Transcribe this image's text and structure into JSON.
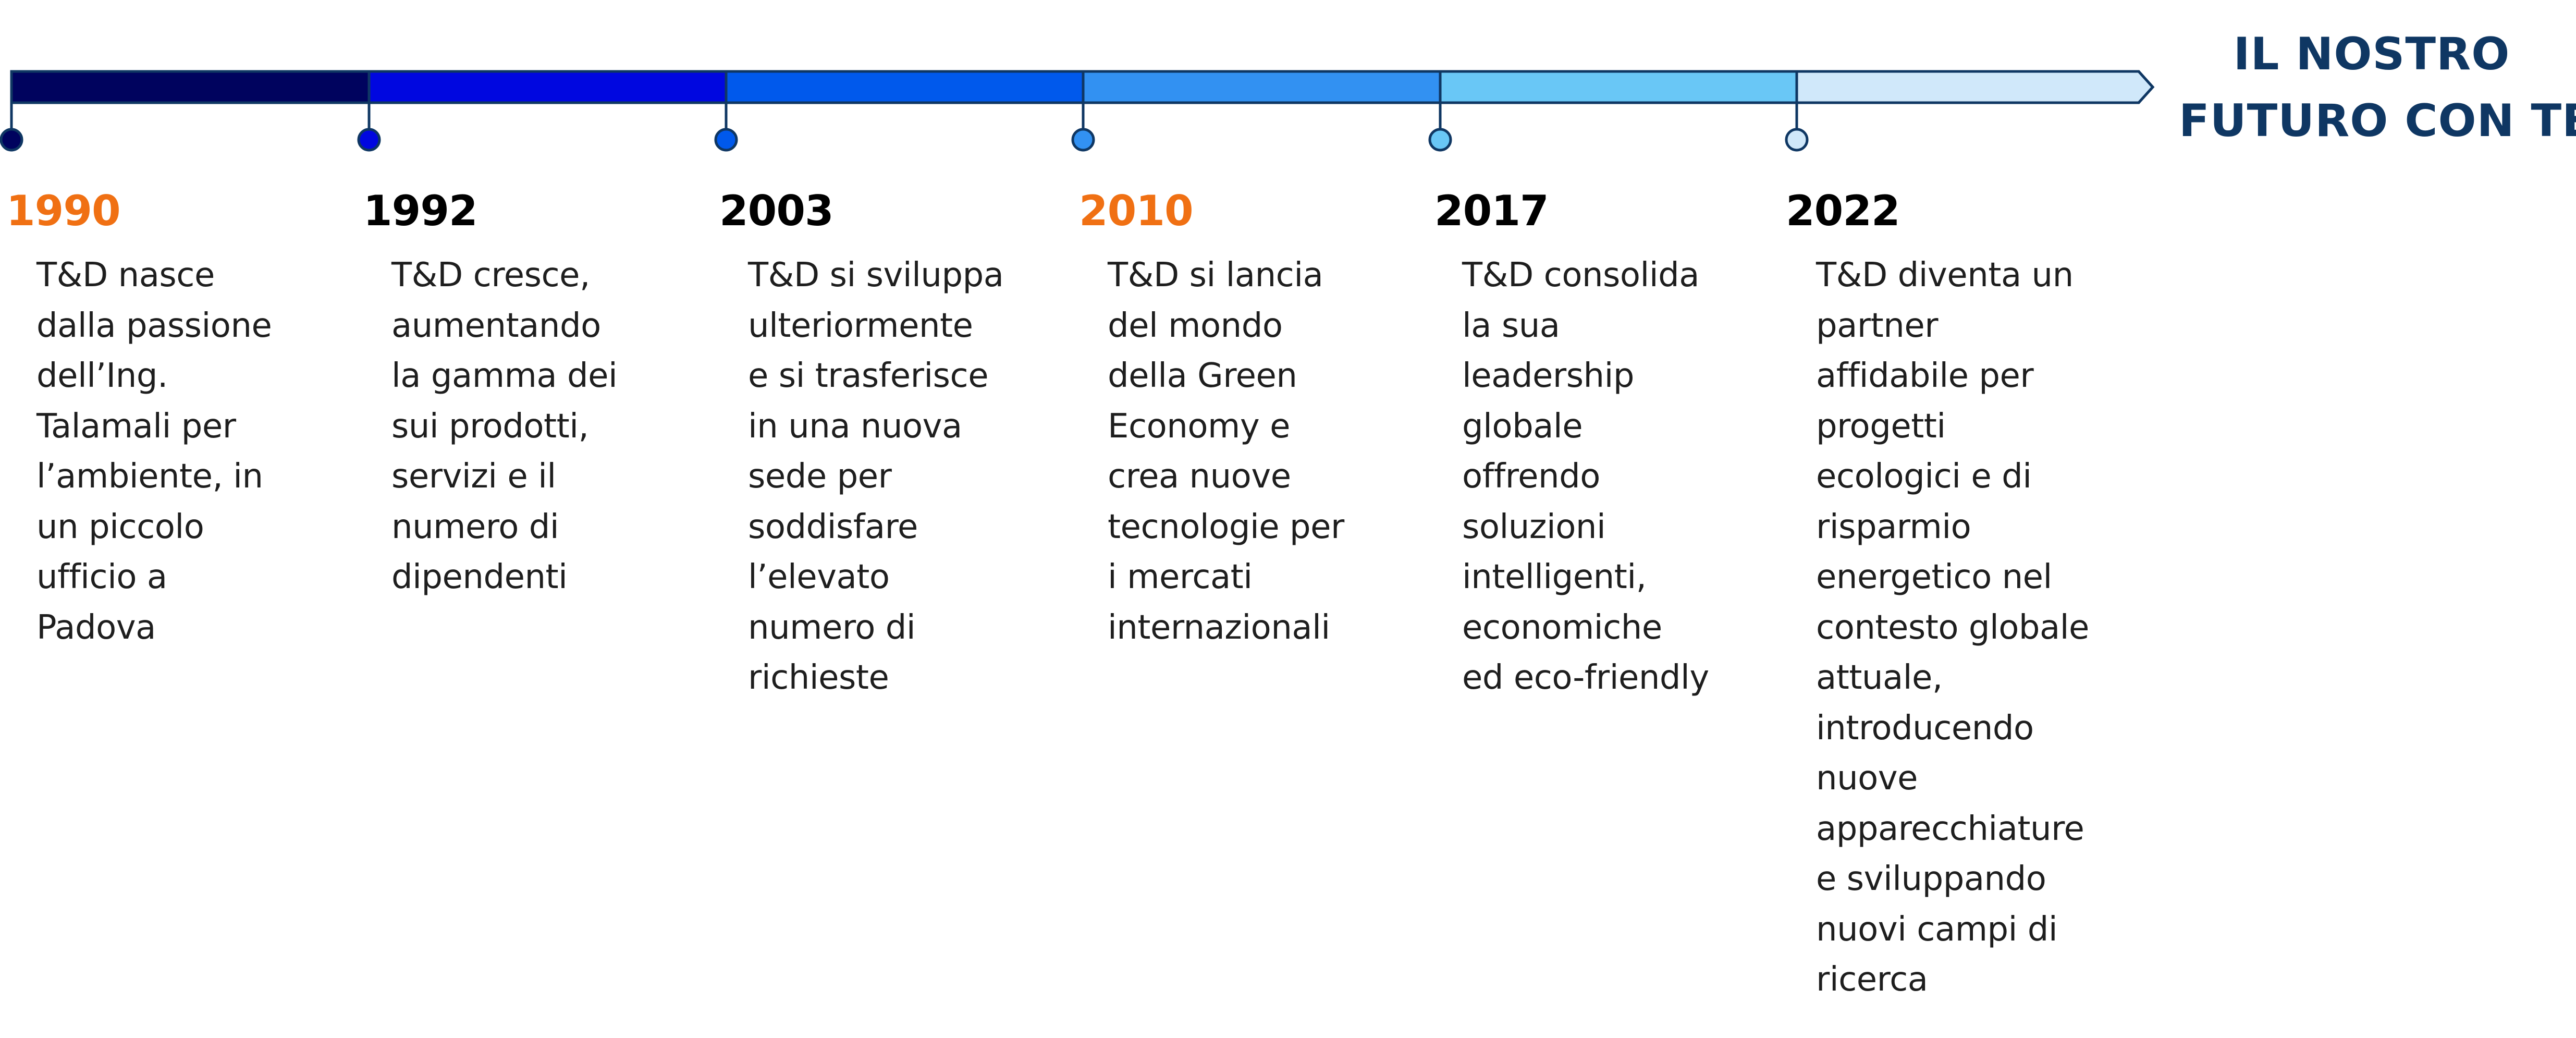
{
  "title": {
    "lines": [
      "IL NOSTRO",
      "FUTURO CON TE"
    ]
  },
  "colors": {
    "title": "#0f3763",
    "accent_year": "#f07013",
    "default_year": "#000000",
    "outline": "#0f3763",
    "segments": [
      "#00035e",
      "#0007e0",
      "#0059ec",
      "#3291f2",
      "#69c7f6",
      "#d0e8fa"
    ]
  },
  "milestones": [
    {
      "year": "1990",
      "accent": true,
      "lines": [
        "T&D nasce",
        "dalla passione",
        "dell’Ing.",
        "Talamali per",
        "l’ambiente, in",
        "un piccolo",
        "ufficio a",
        "Padova"
      ]
    },
    {
      "year": "1992",
      "accent": false,
      "lines": [
        "T&D cresce,",
        "aumentando",
        "la gamma dei",
        "sui prodotti,",
        "servizi e il",
        "numero di",
        "dipendenti"
      ]
    },
    {
      "year": "2003",
      "accent": false,
      "lines": [
        "T&D si sviluppa",
        "ulteriormente",
        "e si trasferisce",
        "in una nuova",
        "sede per",
        "soddisfare",
        "l’elevato",
        "numero di",
        "richieste"
      ]
    },
    {
      "year": "2010",
      "accent": true,
      "lines": [
        "T&D si lancia",
        "del mondo",
        "della Green",
        "Economy e",
        "crea nuove",
        "tecnologie per",
        "i mercati",
        "internazionali"
      ]
    },
    {
      "year": "2017",
      "accent": false,
      "lines": [
        "T&D consolida",
        "la sua",
        "leadership",
        "globale",
        "offrendo",
        "soluzioni",
        "intelligenti,",
        "economiche",
        "ed eco-friendly"
      ]
    },
    {
      "year": "2022",
      "accent": false,
      "lines": [
        "T&D diventa un",
        "partner",
        "affidabile per",
        "progetti",
        "ecologici e di",
        "risparmio",
        "energetico nel",
        "contesto globale",
        "attuale,",
        "introducendo",
        "nuove",
        "apparecchiature",
        "e sviluppando",
        "nuovi campi di",
        "ricerca"
      ]
    }
  ]
}
